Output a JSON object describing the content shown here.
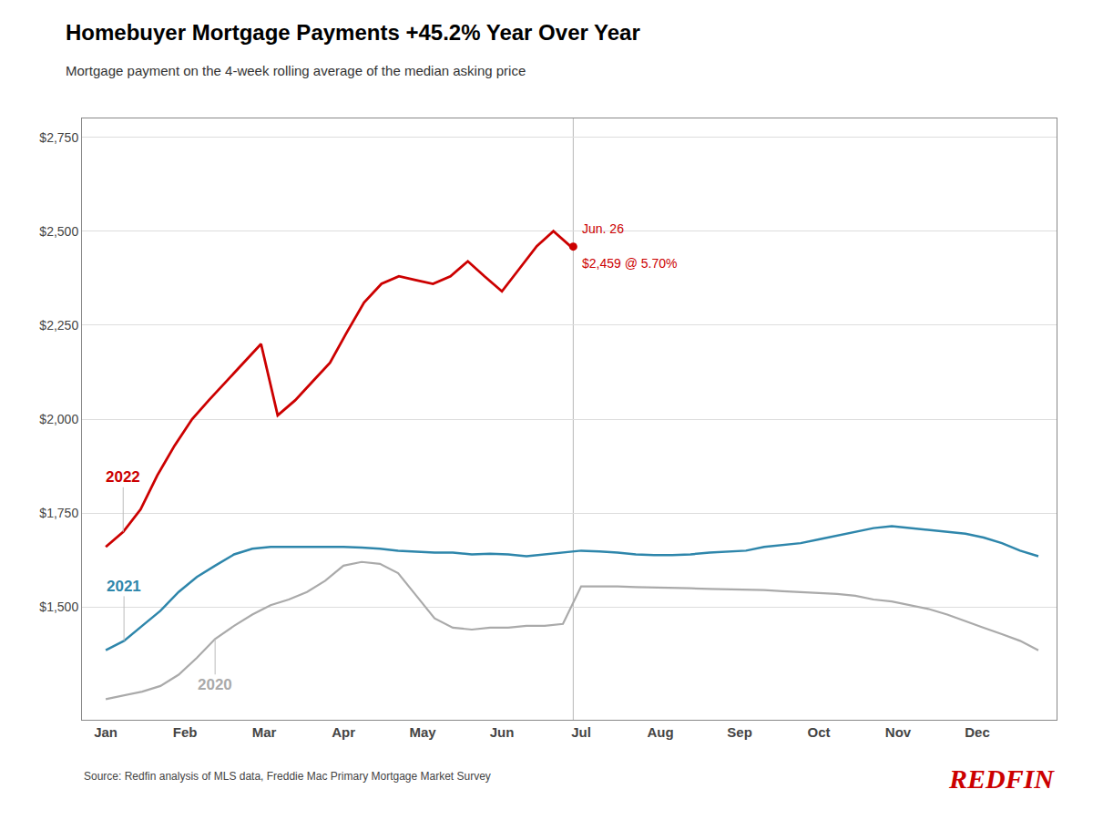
{
  "chart_data": {
    "type": "line",
    "title": "Homebuyer Mortgage Payments +45.2% Year Over Year",
    "subtitle": "Mortgage payment on the 4-week rolling average of the median asking price",
    "source": "Source: Redfin analysis of MLS data, Freddie Mac Primary Mortgage Market Survey",
    "logo": "REDFIN",
    "logo_color": "#CC0000",
    "xlim": [
      -0.3,
      12.0
    ],
    "xticks": [
      {
        "value": 0,
        "label": "Jan"
      },
      {
        "value": 1,
        "label": "Feb"
      },
      {
        "value": 2,
        "label": "Mar"
      },
      {
        "value": 3,
        "label": "Apr"
      },
      {
        "value": 4,
        "label": "May"
      },
      {
        "value": 5,
        "label": "Jun"
      },
      {
        "value": 6,
        "label": "Jul"
      },
      {
        "value": 7,
        "label": "Aug"
      },
      {
        "value": 8,
        "label": "Sep"
      },
      {
        "value": 9,
        "label": "Oct"
      },
      {
        "value": 10,
        "label": "Nov"
      },
      {
        "value": 11,
        "label": "Dec"
      }
    ],
    "ylim": [
      1200,
      2800
    ],
    "yticks": [
      {
        "value": 1500,
        "label": "$1,500"
      },
      {
        "value": 1750,
        "label": "$1,750"
      },
      {
        "value": 2000,
        "label": "$2,000"
      },
      {
        "value": 2250,
        "label": "$2,250"
      },
      {
        "value": 2500,
        "label": "$2,500"
      },
      {
        "value": 2750,
        "label": "$2,750"
      }
    ],
    "grid": "y",
    "series": [
      {
        "name": "2020",
        "color": "#AAAAAA",
        "x": [
          0.0,
          0.23,
          0.46,
          0.69,
          0.92,
          1.15,
          1.38,
          1.62,
          1.85,
          2.08,
          2.31,
          2.54,
          2.77,
          3.0,
          3.23,
          3.46,
          3.69,
          3.92,
          4.15,
          4.38,
          4.62,
          4.85,
          5.08,
          5.31,
          5.54,
          5.77,
          6.0,
          6.23,
          6.46,
          6.69,
          6.92,
          7.15,
          7.38,
          7.62,
          7.85,
          8.08,
          8.31,
          8.54,
          8.77,
          9.0,
          9.23,
          9.46,
          9.69,
          9.92,
          10.15,
          10.38,
          10.62,
          10.85,
          11.08,
          11.31,
          11.54,
          11.77
        ],
        "values": [
          1255,
          1265,
          1275,
          1290,
          1320,
          1365,
          1415,
          1450,
          1480,
          1505,
          1520,
          1540,
          1570,
          1610,
          1620,
          1615,
          1590,
          1530,
          1470,
          1445,
          1440,
          1445,
          1445,
          1450,
          1450,
          1455,
          1555,
          1555,
          1555,
          1553,
          1552,
          1552,
          1550,
          1548,
          1547,
          1546,
          1545,
          1542,
          1540,
          1538,
          1535,
          1530,
          1520,
          1515,
          1505,
          1495,
          1480,
          1462,
          1445,
          1428,
          1410,
          1385
        ]
      },
      {
        "name": "2021",
        "color": "#2E86AB",
        "x": [
          0.0,
          0.23,
          0.46,
          0.69,
          0.92,
          1.15,
          1.38,
          1.62,
          1.85,
          2.08,
          2.31,
          2.54,
          2.77,
          3.0,
          3.23,
          3.46,
          3.69,
          3.92,
          4.15,
          4.38,
          4.62,
          4.85,
          5.08,
          5.31,
          5.54,
          5.77,
          6.0,
          6.23,
          6.46,
          6.69,
          6.92,
          7.15,
          7.38,
          7.62,
          7.85,
          8.08,
          8.31,
          8.54,
          8.77,
          9.0,
          9.23,
          9.46,
          9.69,
          9.92,
          10.15,
          10.38,
          10.62,
          10.85,
          11.08,
          11.31,
          11.54,
          11.77
        ],
        "values": [
          1385,
          1410,
          1450,
          1490,
          1540,
          1580,
          1610,
          1640,
          1655,
          1660,
          1660,
          1660,
          1660,
          1660,
          1658,
          1655,
          1650,
          1648,
          1645,
          1645,
          1640,
          1642,
          1640,
          1635,
          1640,
          1645,
          1650,
          1648,
          1645,
          1640,
          1638,
          1638,
          1640,
          1645,
          1648,
          1650,
          1660,
          1665,
          1670,
          1680,
          1690,
          1700,
          1710,
          1715,
          1710,
          1705,
          1700,
          1695,
          1685,
          1670,
          1650,
          1635
        ]
      },
      {
        "name": "2022",
        "color": "#CC0000",
        "x": [
          0.0,
          0.22,
          0.44,
          0.65,
          0.87,
          1.09,
          1.3,
          1.52,
          1.74,
          1.96,
          2.17,
          2.39,
          2.61,
          2.83,
          3.04,
          3.26,
          3.48,
          3.7,
          3.91,
          4.13,
          4.35,
          4.57,
          4.78,
          5.0,
          5.22,
          5.44,
          5.65,
          5.87
        ],
        "values": [
          1660,
          1700,
          1760,
          1850,
          1930,
          2000,
          2050,
          2100,
          2150,
          2200,
          2010,
          2050,
          2100,
          2150,
          2230,
          2310,
          2360,
          2380,
          2370,
          2360,
          2380,
          2420,
          2380,
          2340,
          2400,
          2460,
          2500,
          2459
        ]
      }
    ],
    "annotation": {
      "x": 5.9,
      "y": 2459,
      "texts": [
        "Jun. 26",
        "$2,459 @ 5.70%"
      ],
      "color": "#CC0000"
    }
  }
}
